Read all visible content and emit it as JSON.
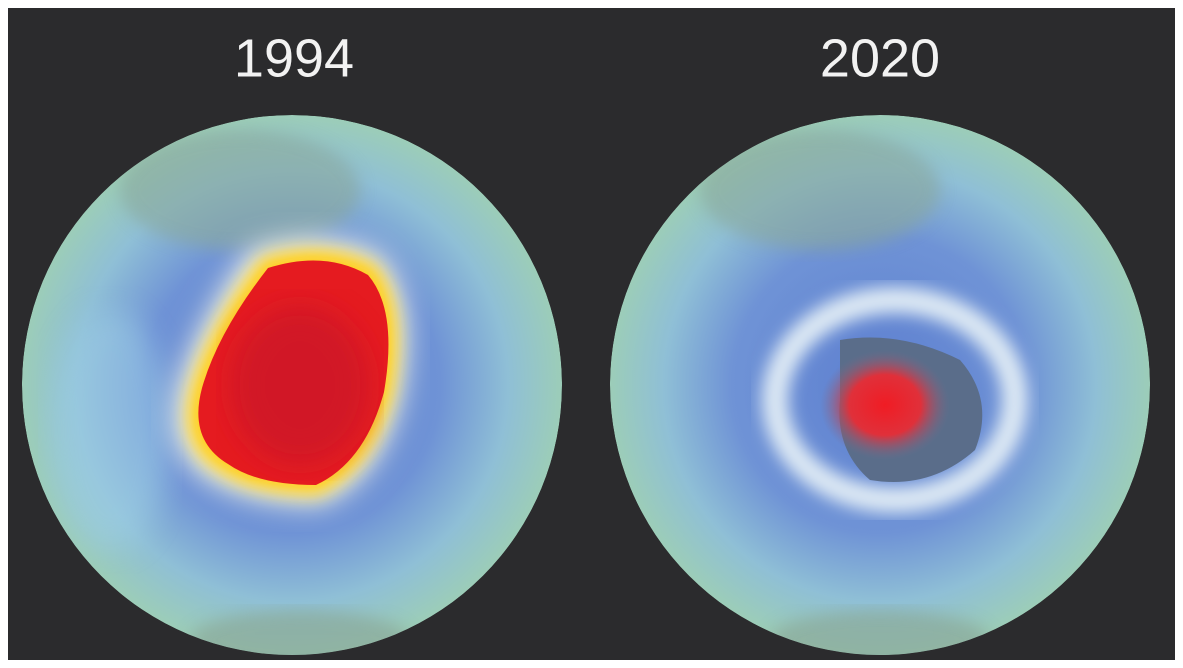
{
  "panels": [
    {
      "label": "1994"
    },
    {
      "label": "2020"
    }
  ]
}
